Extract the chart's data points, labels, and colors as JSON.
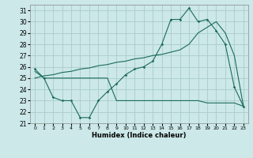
{
  "x": [
    0,
    1,
    2,
    3,
    4,
    5,
    6,
    7,
    8,
    9,
    10,
    11,
    12,
    13,
    14,
    15,
    16,
    17,
    18,
    19,
    20,
    21,
    22,
    23
  ],
  "line1": [
    25.8,
    25.0,
    23.3,
    23.0,
    23.0,
    21.5,
    21.5,
    23.0,
    23.8,
    24.5,
    25.3,
    25.8,
    26.0,
    26.5,
    28.0,
    30.2,
    30.2,
    31.2,
    30.0,
    30.2,
    29.2,
    28.0,
    24.2,
    22.5
  ],
  "line2": [
    25.0,
    25.2,
    25.3,
    25.5,
    25.6,
    25.8,
    25.9,
    26.1,
    26.2,
    26.4,
    26.5,
    26.7,
    26.8,
    27.0,
    27.1,
    27.3,
    27.5,
    28.0,
    29.0,
    29.5,
    30.0,
    29.0,
    27.0,
    22.5
  ],
  "line3": [
    25.6,
    25.0,
    25.0,
    25.0,
    25.0,
    25.0,
    25.0,
    25.0,
    25.0,
    23.0,
    23.0,
    23.0,
    23.0,
    23.0,
    23.0,
    23.0,
    23.0,
    23.0,
    23.0,
    22.8,
    22.8,
    22.8,
    22.8,
    22.5
  ],
  "line_color": "#1a6b5a",
  "bg_color": "#cce8e8",
  "grid_color": "#aacccc",
  "xlabel": "Humidex (Indice chaleur)",
  "xlim": [
    -0.5,
    23.5
  ],
  "ylim": [
    21,
    31.5
  ],
  "yticks": [
    21,
    22,
    23,
    24,
    25,
    26,
    27,
    28,
    29,
    30,
    31
  ],
  "xticks": [
    0,
    1,
    2,
    3,
    4,
    5,
    6,
    7,
    8,
    9,
    10,
    11,
    12,
    13,
    14,
    15,
    16,
    17,
    18,
    19,
    20,
    21,
    22,
    23
  ],
  "xtick_labels": [
    "0",
    "1",
    "2",
    "3",
    "4",
    "5",
    "6",
    "7",
    "8",
    "9",
    "10",
    "11",
    "12",
    "13",
    "14",
    "15",
    "16",
    "17",
    "18",
    "19",
    "20",
    "21",
    "22",
    "23"
  ]
}
